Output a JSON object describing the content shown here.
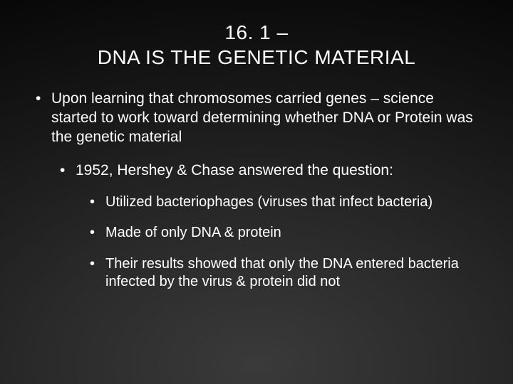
{
  "title": {
    "line1": "16. 1 –",
    "line2": "DNA IS THE GENETIC MATERIAL"
  },
  "bullets": {
    "l1_0": "Upon learning that chromosomes carried genes – science started to work toward determining whether DNA or Protein was the genetic material",
    "l2_0": "1952, Hershey & Chase answered the question:",
    "l3_0": "Utilized bacteriophages (viruses that infect bacteria)",
    "l3_1": "Made of only DNA & protein",
    "l3_2": "Their results showed that only the DNA entered bacteria infected by the virus & protein did not"
  },
  "style": {
    "background_gradient": [
      "#3a3a3a",
      "#2a2a2a",
      "#111111",
      "#000000"
    ],
    "text_color": "#ffffff",
    "title_fontsize": 28,
    "body_fontsize_l1": 21,
    "body_fontsize_l2": 21,
    "body_fontsize_l3": 20,
    "font_family": "Arial"
  }
}
